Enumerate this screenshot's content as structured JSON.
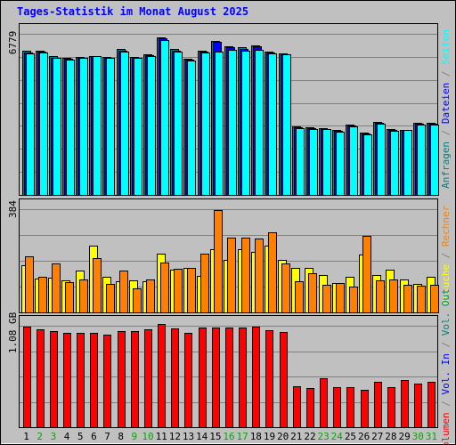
{
  "title": "Tages-Statistik im Monat August 2025",
  "chart_data": [
    {
      "type": "bar",
      "panel": "top",
      "ymax_label": "6779",
      "ylim": [
        0,
        6779
      ],
      "categories": [
        "1",
        "2",
        "3",
        "4",
        "5",
        "6",
        "7",
        "8",
        "9",
        "10",
        "11",
        "12",
        "13",
        "14",
        "15",
        "16",
        "17",
        "18",
        "19",
        "20",
        "21",
        "22",
        "23",
        "24",
        "25",
        "26",
        "27",
        "28",
        "29",
        "30",
        "31"
      ],
      "series": [
        {
          "name": "Anfragen",
          "color": "#008080",
          "values": [
            6080,
            6080,
            5860,
            5750,
            5800,
            5840,
            5800,
            6130,
            5800,
            5900,
            6630,
            6130,
            5720,
            6060,
            6480,
            6250,
            6200,
            6300,
            6020,
            5950,
            2890,
            2840,
            2820,
            2730,
            2970,
            2620,
            3080,
            2760,
            2750,
            3020,
            3040
          ]
        },
        {
          "name": "Dateien",
          "color": "#0000ff",
          "values": [
            6000,
            6040,
            5780,
            5730,
            5780,
            5840,
            5780,
            6060,
            5780,
            5880,
            6580,
            6080,
            5700,
            6020,
            6430,
            6200,
            6150,
            6250,
            5980,
            5930,
            2850,
            2800,
            2780,
            2690,
            2920,
            2580,
            3030,
            2720,
            2730,
            2980,
            3000
          ]
        },
        {
          "name": "Seiten",
          "color": "#00ffff",
          "values": [
            5960,
            6000,
            5750,
            5700,
            5750,
            5840,
            5750,
            6020,
            5750,
            5860,
            6520,
            6040,
            5650,
            5990,
            6020,
            6090,
            6080,
            6090,
            5940,
            5900,
            2820,
            2770,
            2760,
            2670,
            2890,
            2560,
            2980,
            2690,
            2720,
            2950,
            2970
          ]
        }
      ]
    },
    {
      "type": "bar",
      "panel": "middle",
      "ymax_label": "384",
      "ylim": [
        0,
        384
      ],
      "categories": [
        "1",
        "2",
        "3",
        "4",
        "5",
        "6",
        "7",
        "8",
        "9",
        "10",
        "11",
        "12",
        "13",
        "14",
        "15",
        "16",
        "17",
        "18",
        "19",
        "20",
        "21",
        "22",
        "23",
        "24",
        "25",
        "26",
        "27",
        "28",
        "29",
        "30",
        "31"
      ],
      "series": [
        {
          "name": "Besuche",
          "color": "#ffff00",
          "values": [
            176,
            126,
            130,
            118,
            157,
            249,
            131,
            117,
            119,
            117,
            218,
            158,
            167,
            137,
            236,
            195,
            235,
            225,
            248,
            195,
            166,
            166,
            139,
            108,
            133,
            215,
            138,
            158,
            121,
            107,
            132
          ]
        },
        {
          "name": "Rechner",
          "color": "#ff8000",
          "values": [
            207,
            132,
            183,
            113,
            124,
            201,
            106,
            157,
            88,
            123,
            185,
            162,
            165,
            217,
            381,
            279,
            279,
            275,
            298,
            181,
            117,
            144,
            104,
            108,
            95,
            285,
            120,
            124,
            103,
            99,
            102
          ]
        }
      ]
    },
    {
      "type": "bar",
      "panel": "bottom",
      "ymax_label": "1.08 GB",
      "ylim": [
        0,
        1.08
      ],
      "categories": [
        "1",
        "2",
        "3",
        "4",
        "5",
        "6",
        "7",
        "8",
        "9",
        "10",
        "11",
        "12",
        "13",
        "14",
        "15",
        "16",
        "17",
        "18",
        "19",
        "20",
        "21",
        "22",
        "23",
        "24",
        "25",
        "26",
        "27",
        "28",
        "29",
        "30",
        "31"
      ],
      "series": [
        {
          "name": "Volumen",
          "color": "#ff0000",
          "values": [
            1.074,
            1.044,
            1.027,
            1.005,
            1.005,
            1.005,
            0.989,
            1.021,
            1.021,
            1.041,
            1.102,
            1.054,
            1.005,
            1.064,
            1.064,
            1.064,
            1.064,
            1.074,
            1.031,
            1.011,
            0.435,
            0.419,
            0.521,
            0.431,
            0.431,
            0.401,
            0.486,
            0.431,
            0.503,
            0.465,
            0.486
          ]
        }
      ]
    }
  ],
  "right_legend_top": [
    {
      "text": "Anfragen",
      "color": "#008080"
    },
    {
      "text": " / ",
      "color": "#808080"
    },
    {
      "text": "Dateien",
      "color": "#0000ff"
    },
    {
      "text": " / ",
      "color": "#808080"
    },
    {
      "text": "Seiten",
      "color": "#00ffff"
    }
  ],
  "right_legend_middle": [
    {
      "text": "Besuche",
      "color": "#ffff00"
    },
    {
      "text": " / ",
      "color": "#808080"
    },
    {
      "text": "Rechner",
      "color": "#ff8000"
    }
  ],
  "right_legend_bottom": [
    {
      "text": "Volumen",
      "color": "#ff0000"
    },
    {
      "text": " / ",
      "color": "#808080"
    },
    {
      "text": "Vol. In",
      "color": "#0000ff"
    },
    {
      "text": " / ",
      "color": "#808080"
    },
    {
      "text": "Vol. Out",
      "color": "#008080"
    }
  ],
  "day_labels": [
    "1",
    "2",
    "3",
    "4",
    "5",
    "6",
    "7",
    "8",
    "9",
    "10",
    "11",
    "12",
    "13",
    "14",
    "15",
    "16",
    "17",
    "18",
    "19",
    "20",
    "21",
    "22",
    "23",
    "24",
    "25",
    "26",
    "27",
    "28",
    "29",
    "30",
    "31"
  ],
  "weekend_days": [
    "2",
    "3",
    "9",
    "10",
    "16",
    "17",
    "23",
    "24",
    "30",
    "31"
  ],
  "colors": {
    "background": "#c0c0c0",
    "weekday_label": "#000000",
    "weekend_label": "#00aa00",
    "title": "#0000ff"
  }
}
